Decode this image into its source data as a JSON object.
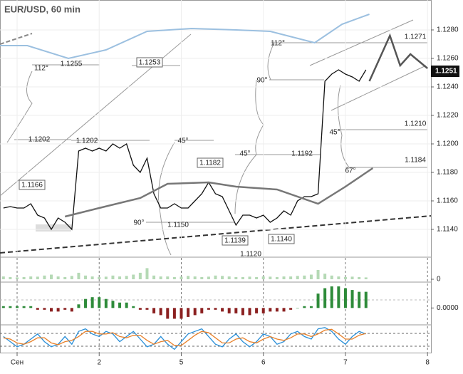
{
  "chart_data": {
    "type": "line",
    "title": "EUR/USD, 60 min",
    "xlim": [
      -5,
      121
    ],
    "xticks": [
      {
        "value": 0,
        "label": "Сен"
      },
      {
        "value": 24,
        "label": "2"
      },
      {
        "value": 48,
        "label": "5"
      },
      {
        "value": 72,
        "label": "6"
      },
      {
        "value": 96,
        "label": "7"
      },
      {
        "value": 120,
        "label": "8"
      }
    ],
    "ylim": [
      1.1121,
      1.1301
    ],
    "yticks": [
      {
        "value": 1.114,
        "label": "1.1140"
      },
      {
        "value": 1.116,
        "label": "1.1160"
      },
      {
        "value": 1.118,
        "label": "1.1180"
      },
      {
        "value": 1.12,
        "label": "1.1200"
      },
      {
        "value": 1.122,
        "label": "1.1220"
      },
      {
        "value": 1.124,
        "label": "1.1240"
      },
      {
        "value": 1.126,
        "label": "1.1260"
      },
      {
        "value": 1.128,
        "label": "1.1280"
      }
    ],
    "grid": true,
    "last_price": 1.1251,
    "series": [
      {
        "color": "#111111",
        "x": [
          -4,
          -2,
          0,
          2,
          4,
          6,
          8,
          10,
          12,
          14,
          16,
          18,
          20,
          22,
          24,
          26,
          28,
          30,
          32,
          34,
          36,
          38,
          40,
          42,
          44,
          46,
          48,
          50,
          52,
          54,
          56,
          58,
          60,
          62,
          64,
          66,
          68,
          70,
          72,
          74,
          76,
          78,
          80,
          82,
          84,
          86,
          88,
          90,
          92,
          94,
          96,
          98,
          100,
          102
        ],
        "values": [
          1.1155,
          1.1156,
          1.1155,
          1.1155,
          1.1158,
          1.115,
          1.1148,
          1.114,
          1.1148,
          1.1145,
          1.114,
          1.1195,
          1.1197,
          1.1195,
          1.1197,
          1.1195,
          1.12,
          1.1197,
          1.12,
          1.1185,
          1.118,
          1.119,
          1.1165,
          1.1155,
          1.1155,
          1.1158,
          1.1155,
          1.1155,
          1.116,
          1.1165,
          1.1173,
          1.1165,
          1.1163,
          1.1153,
          1.1143,
          1.115,
          1.115,
          1.1148,
          1.115,
          1.1145,
          1.1148,
          1.1153,
          1.115,
          1.116,
          1.1163,
          1.1163,
          1.1165,
          1.1244,
          1.1249,
          1.1252,
          1.1249,
          1.1247,
          1.1244,
          1.1252
        ]
      },
      {
        "color": "#777777",
        "x": [
          14,
          24,
          36,
          44,
          56,
          64,
          76,
          88,
          96,
          104
        ],
        "values": [
          1.1149,
          1.1155,
          1.1162,
          1.1172,
          1.1173,
          1.117,
          1.1168,
          1.1158,
          1.117,
          1.1183
        ]
      },
      {
        "color": "#9cc0e0",
        "x": [
          -5,
          3,
          15,
          26,
          38,
          51,
          64,
          74,
          87,
          95,
          103
        ],
        "values": [
          1.1269,
          1.1269,
          1.126,
          1.1266,
          1.1279,
          1.1281,
          1.128,
          1.1279,
          1.1271,
          1.1284,
          1.1291
        ]
      },
      {
        "color": "#555555",
        "x": [
          103,
          109,
          112,
          115,
          120
        ],
        "values": [
          1.1244,
          1.1276,
          1.1255,
          1.1263,
          1.1253
        ]
      }
    ],
    "annotations": [
      "112°",
      "1.1255",
      "1.1253",
      "1.1202",
      "1.1202",
      "45°",
      "1.1166",
      "1.1182",
      "45°",
      "1.1192",
      "90°",
      "1.1150",
      "1.1139",
      "1.1140",
      "1.1120",
      "112°",
      "90°",
      "1.1271",
      "1.1210",
      "1.1184",
      "45°",
      "67°"
    ],
    "volume": {
      "color": "#b5d9b5",
      "ylim": [
        0,
        100
      ],
      "yticks": [
        0
      ],
      "values": [
        15,
        12,
        10,
        12,
        15,
        14,
        20,
        25,
        15,
        12,
        18,
        35,
        20,
        15,
        12,
        14,
        20,
        15,
        18,
        25,
        35,
        60,
        20,
        15,
        15,
        12,
        14,
        18,
        15,
        12,
        14,
        20,
        18,
        15,
        12,
        12,
        14,
        12,
        15,
        14,
        12,
        15,
        15,
        18,
        20,
        25,
        50,
        30,
        20,
        15,
        12,
        14,
        12,
        10
      ]
    },
    "macd": {
      "up_color": "#2e8b3a",
      "down_color": "#8b2020",
      "ylim": [
        -0.0009,
        0.0014
      ],
      "yticks": [
        {
          "value": 0,
          "label": "0.0000"
        }
      ],
      "values": [
        0.0001,
        0.0001,
        0.0001,
        0.0001,
        0.0001,
        -0.0001,
        -0.0001,
        -0.0002,
        -0.0002,
        -0.0001,
        -0.0002,
        0.0002,
        0.0005,
        0.0006,
        0.0006,
        0.0005,
        0.0004,
        0.0003,
        0.0003,
        0.0001,
        -0.0001,
        -0.0001,
        -0.0003,
        -0.0004,
        -0.0006,
        -0.0006,
        -0.0006,
        -0.0005,
        -0.0004,
        -0.0003,
        -0.0001,
        -0.0001,
        -0.0002,
        -0.0003,
        -0.0003,
        -0.0004,
        -0.0004,
        -0.0003,
        -0.0003,
        -0.0002,
        -0.0002,
        -0.0002,
        -0.0001,
        0,
        0.0001,
        0.0001,
        0.0008,
        0.0011,
        0.0012,
        0.0012,
        0.0011,
        0.001,
        0.0009,
        0.0009
      ]
    },
    "stochastic": {
      "ylim": [
        0,
        100
      ],
      "series": [
        {
          "color": "#2a8fd8",
          "values": [
            60,
            40,
            20,
            30,
            50,
            70,
            40,
            20,
            30,
            60,
            30,
            80,
            90,
            70,
            60,
            80,
            70,
            40,
            60,
            80,
            50,
            20,
            30,
            60,
            30,
            10,
            40,
            70,
            80,
            90,
            60,
            30,
            20,
            50,
            70,
            40,
            20,
            40,
            70,
            60,
            30,
            40,
            70,
            80,
            60,
            50,
            90,
            95,
            80,
            50,
            30,
            60,
            80,
            70
          ]
        },
        {
          "color": "#e8812a",
          "values": [
            55,
            50,
            35,
            30,
            40,
            55,
            55,
            35,
            28,
            40,
            45,
            60,
            80,
            80,
            70,
            70,
            75,
            60,
            55,
            65,
            65,
            45,
            30,
            40,
            45,
            25,
            25,
            45,
            65,
            80,
            75,
            55,
            35,
            35,
            50,
            55,
            40,
            35,
            50,
            60,
            50,
            45,
            55,
            70,
            70,
            60,
            70,
            85,
            88,
            70,
            50,
            50,
            65,
            72
          ]
        }
      ]
    }
  }
}
